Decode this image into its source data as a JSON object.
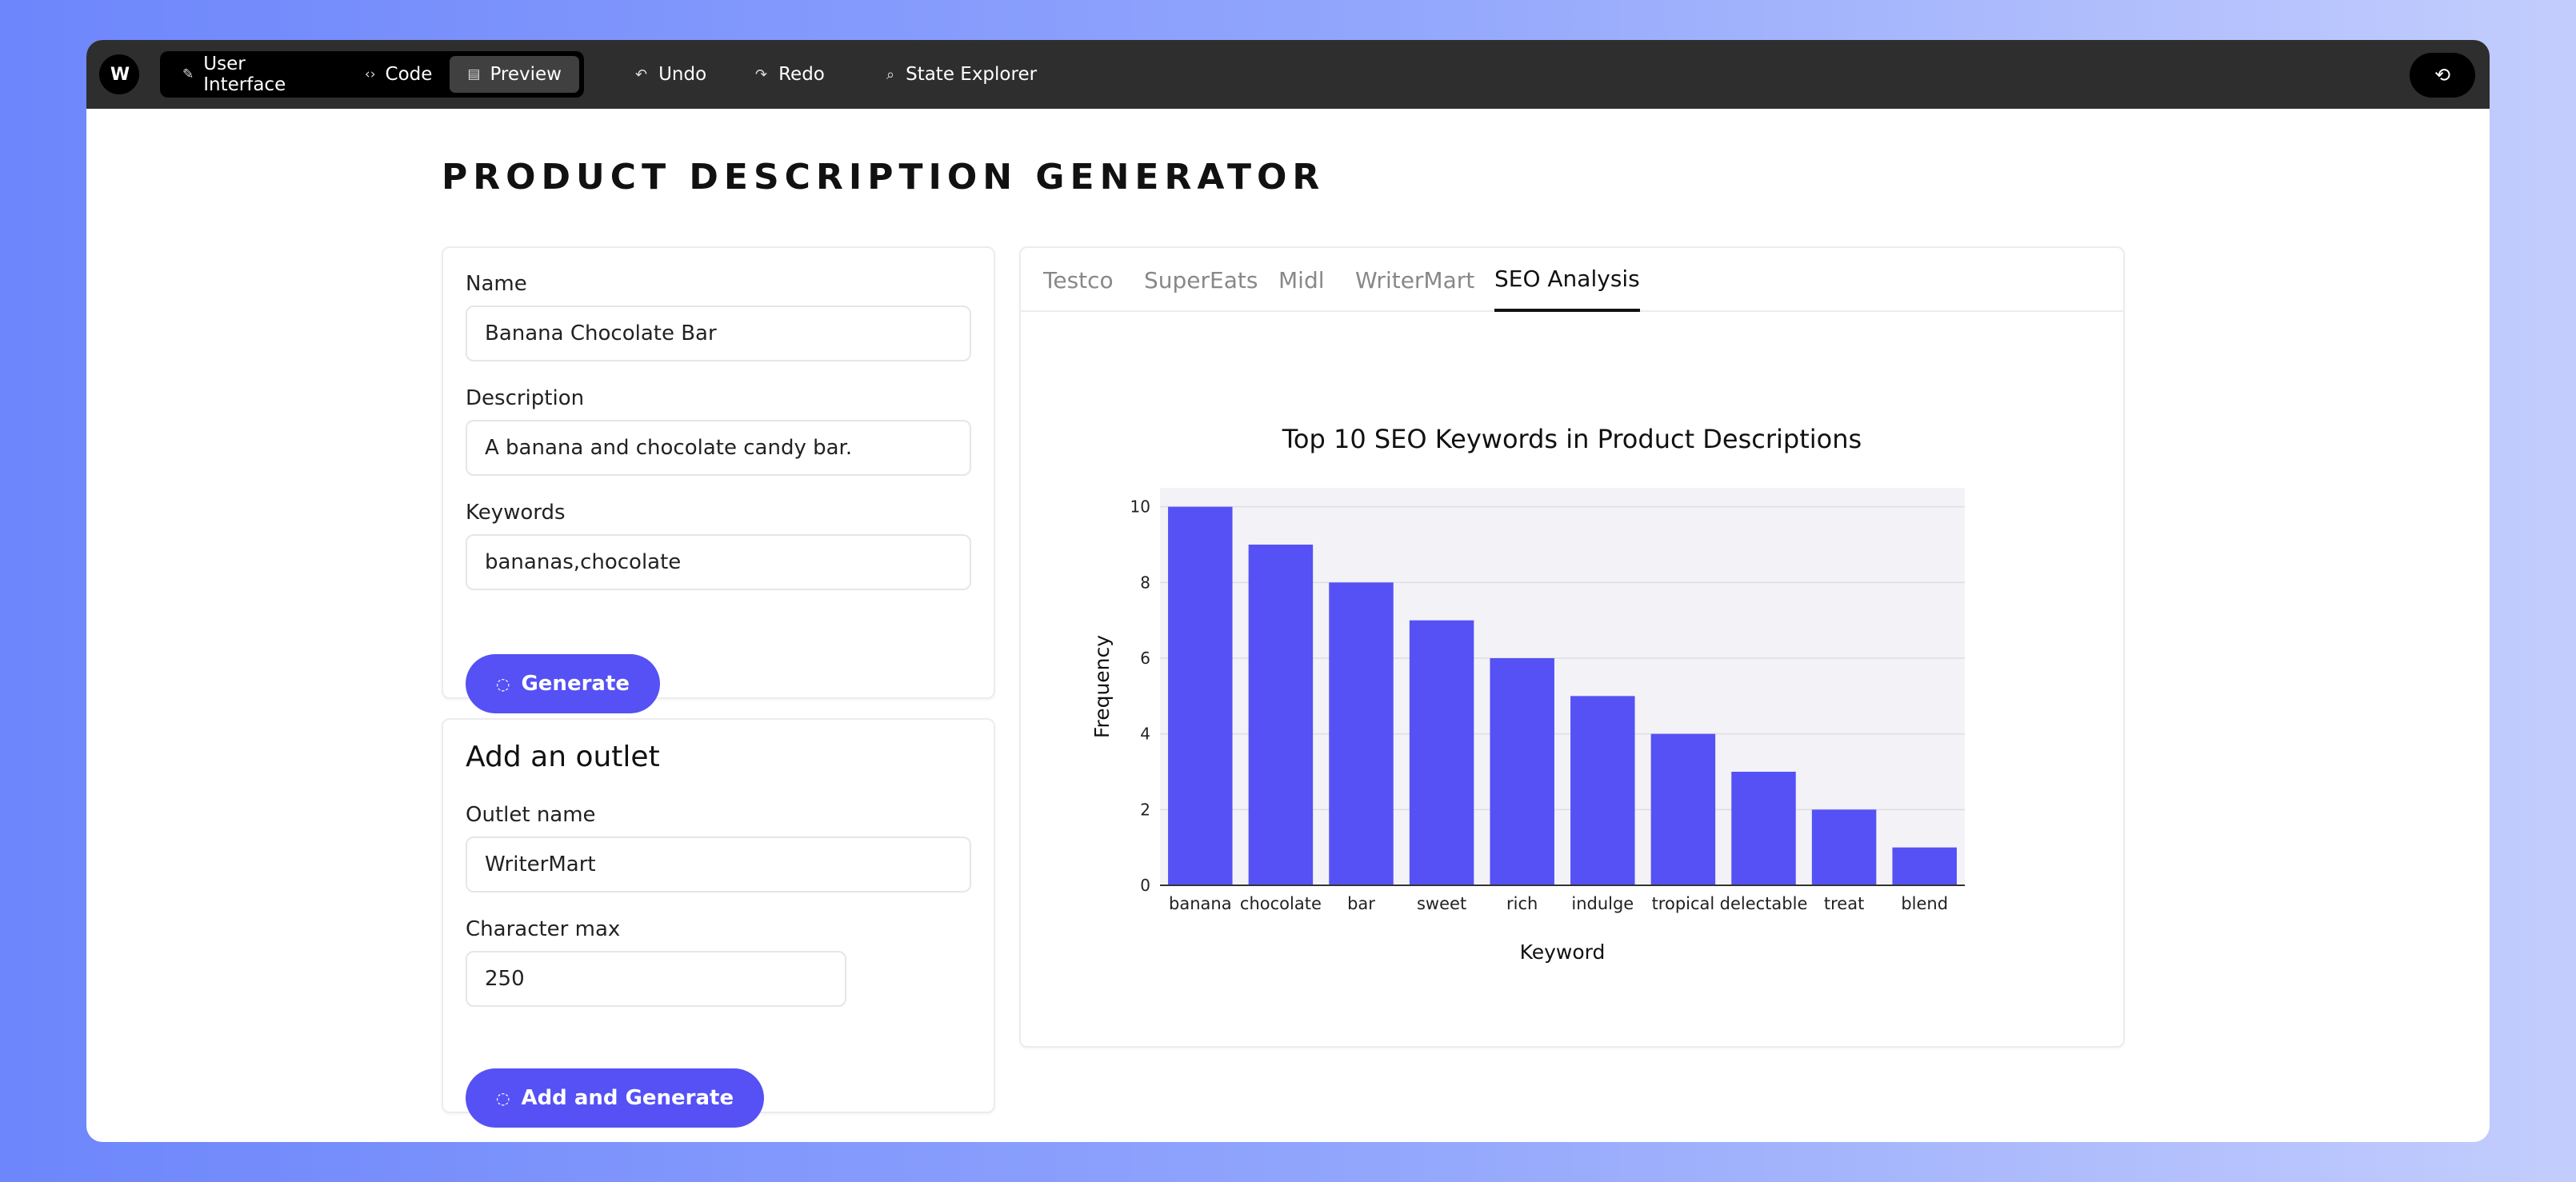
{
  "toolbar": {
    "logo": "W",
    "modes": [
      {
        "label": "User Interface",
        "icon": "brush-icon"
      },
      {
        "label": "Code",
        "icon": "code-icon"
      },
      {
        "label": "Preview",
        "icon": "preview-icon"
      }
    ],
    "active_mode": "Preview",
    "undo_label": "Undo",
    "redo_label": "Redo",
    "state_explorer_label": "State Explorer",
    "sync_icon": "sync-icon"
  },
  "page": {
    "title": "PRODUCT DESCRIPTION GENERATOR"
  },
  "product_form": {
    "name_label": "Name",
    "name_value": "Banana Chocolate Bar",
    "description_label": "Description",
    "description_value": "A banana and chocolate candy bar.",
    "keywords_label": "Keywords",
    "keywords_value": "bananas,chocolate",
    "generate_label": "Generate"
  },
  "outlet_form": {
    "title": "Add an outlet",
    "outlet_name_label": "Outlet name",
    "outlet_name_value": "WriterMart",
    "char_max_label": "Character max",
    "char_max_value": "250",
    "submit_label": "Add and Generate"
  },
  "tabs": {
    "items": [
      "Testco",
      "SuperEats",
      "Midl",
      "WriterMart",
      "SEO Analysis"
    ],
    "active": "SEO Analysis"
  },
  "colors": {
    "accent": "#5551f5",
    "bar": "#5551f5",
    "plot_bg": "#f3f2f7",
    "topbar": "#2e2e2e"
  },
  "chart_data": {
    "type": "bar",
    "title": "Top 10 SEO Keywords in Product Descriptions",
    "xlabel": "Keyword",
    "ylabel": "Frequency",
    "categories": [
      "banana",
      "chocolate",
      "bar",
      "sweet",
      "rich",
      "indulge",
      "tropical",
      "delectable",
      "treat",
      "blend"
    ],
    "values": [
      10,
      9,
      8,
      7,
      6,
      5,
      4,
      3,
      2,
      1
    ],
    "ylim": [
      0,
      10.5
    ],
    "yticks": [
      0,
      2,
      4,
      6,
      8,
      10
    ],
    "grid": true,
    "legend": "none"
  }
}
